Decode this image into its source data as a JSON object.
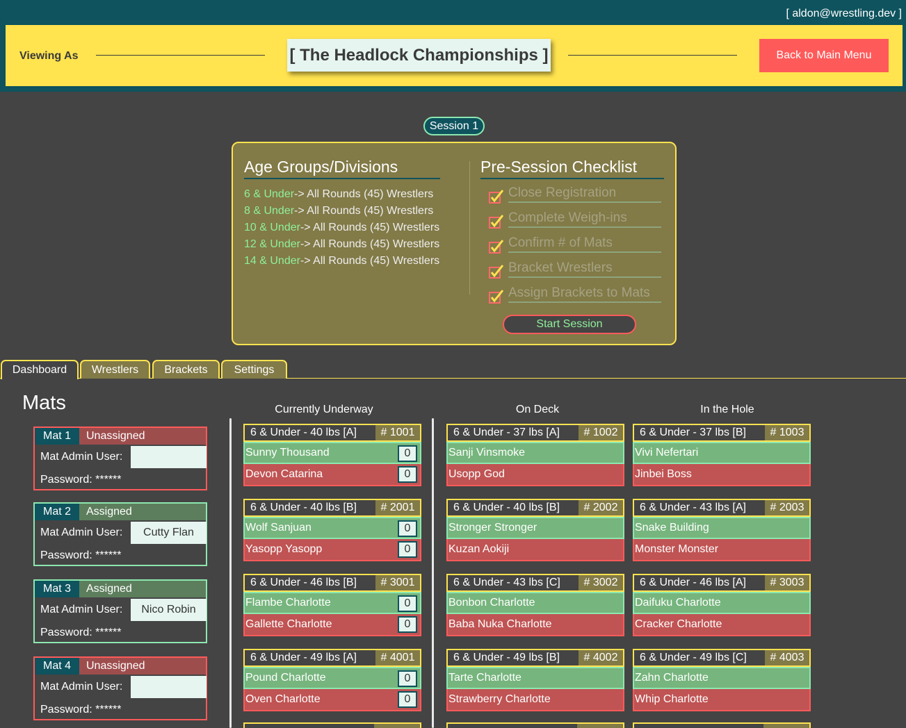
{
  "header": {
    "user_email": "[ aldon@wrestling.dev ]",
    "viewing_as": "Viewing As",
    "title": "[ The Headlock Championships ]",
    "back_button": "Back to Main Menu"
  },
  "session": {
    "label": "Session 1",
    "age_groups_title": "Age Groups/Divisions",
    "age_groups": [
      {
        "name": "6 & Under",
        "detail": "-> All Rounds (45) Wrestlers"
      },
      {
        "name": "8 & Under",
        "detail": "-> All Rounds (45) Wrestlers"
      },
      {
        "name": "10 & Under",
        "detail": "-> All Rounds (45) Wrestlers"
      },
      {
        "name": "12 & Under",
        "detail": "-> All Rounds (45) Wrestlers"
      },
      {
        "name": "14 & Under",
        "detail": "-> All Rounds (45) Wrestlers"
      }
    ],
    "checklist_title": "Pre-Session Checklist",
    "checklist": [
      "Close Registration",
      "Complete Weigh-ins",
      "Confirm # of Mats",
      "Bracket Wrestlers",
      "Assign Brackets to Mats"
    ],
    "start_button": "Start Session"
  },
  "tabs": [
    "Dashboard",
    "Wrestlers",
    "Brackets",
    "Settings"
  ],
  "mats": {
    "title": "Mats",
    "admin_label": "Mat Admin User:",
    "password_label": "Password: ******",
    "items": [
      {
        "name": "Mat 1",
        "status": "Unassigned",
        "admin": ""
      },
      {
        "name": "Mat 2",
        "status": "Assigned",
        "admin": "Cutty Flan"
      },
      {
        "name": "Mat 3",
        "status": "Assigned",
        "admin": "Nico Robin"
      },
      {
        "name": "Mat 4",
        "status": "Unassigned",
        "admin": ""
      }
    ]
  },
  "columns": {
    "underway": "Currently Underway",
    "on_deck": "On Deck",
    "in_hole": "In the Hole"
  },
  "underway": [
    {
      "division": "6 & Under - 40 lbs [A]",
      "number": "# 1001",
      "green": "Sunny Thousand",
      "red": "Devon Catarina",
      "green_score": "0",
      "red_score": "0"
    },
    {
      "division": "6 & Under - 40 lbs [B]",
      "number": "# 2001",
      "green": "Wolf Sanjuan",
      "red": "Yasopp Yasopp",
      "green_score": "0",
      "red_score": "0"
    },
    {
      "division": "6 & Under - 46 lbs [B]",
      "number": "# 3001",
      "green": "Flambe Charlotte",
      "red": "Gallette Charlotte",
      "green_score": "0",
      "red_score": "0"
    },
    {
      "division": "6 & Under - 49 lbs [A]",
      "number": "# 4001",
      "green": "Pound Charlotte",
      "red": "Oven Charlotte",
      "green_score": "0",
      "red_score": "0"
    }
  ],
  "on_deck": [
    {
      "division": "6 & Under - 37 lbs [A]",
      "number": "# 1002",
      "green": "Sanji Vinsmoke",
      "red": "Usopp God"
    },
    {
      "division": "6 & Under - 40 lbs [B]",
      "number": "# 2002",
      "green": "Stronger Stronger",
      "red": "Kuzan Aokiji"
    },
    {
      "division": "6 & Under - 43 lbs [C]",
      "number": "# 3002",
      "green": "Bonbon Charlotte",
      "red": "Baba Nuka Charlotte"
    },
    {
      "division": "6 & Under - 49 lbs [B]",
      "number": "# 4002",
      "green": "Tarte Charlotte",
      "red": "Strawberry Charlotte"
    }
  ],
  "in_hole": [
    {
      "division": "6 & Under - 37 lbs [B]",
      "number": "# 1003",
      "green": "Vivi Nefertari",
      "red": "Jinbei Boss"
    },
    {
      "division": "6 & Under - 43 lbs [A]",
      "number": "# 2003",
      "green": "Snake Building",
      "red": "Monster Monster"
    },
    {
      "division": "6 & Under - 46 lbs [A]",
      "number": "# 3003",
      "green": "Daifuku Charlotte",
      "red": "Cracker Charlotte"
    },
    {
      "division": "6 & Under - 49 lbs [C]",
      "number": "# 4003",
      "green": "Zahn Charlotte",
      "red": "Whip Charlotte"
    }
  ]
}
